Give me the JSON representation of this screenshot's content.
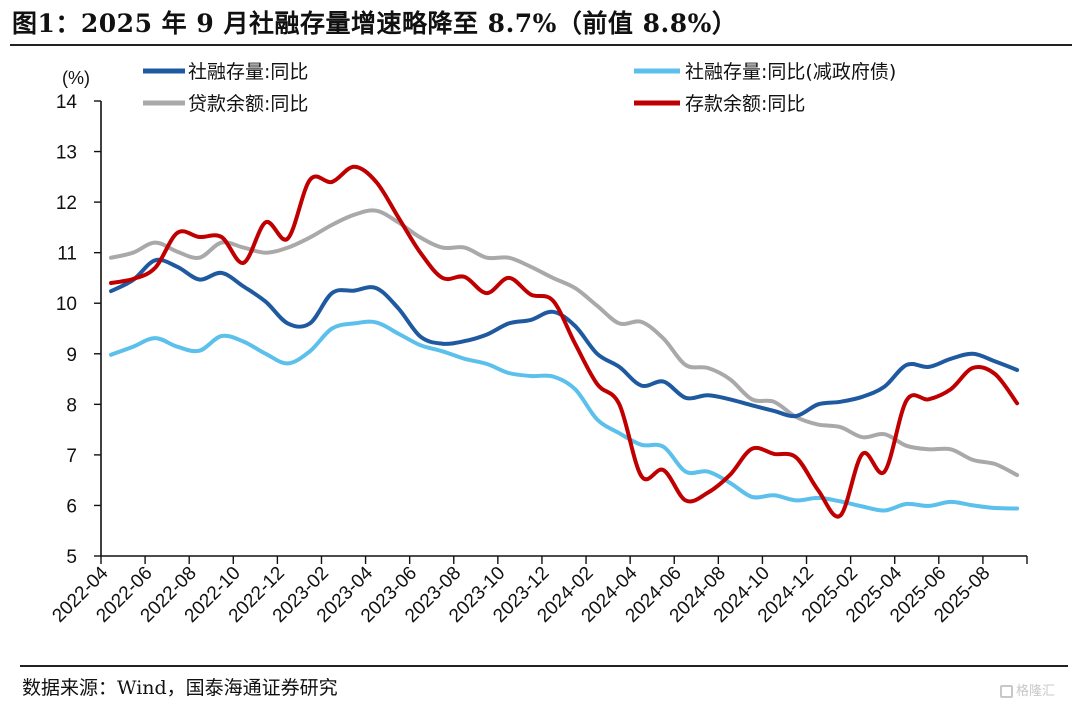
{
  "title": "图1：2025 年 9 月社融存量增速略降至 8.7%（前值 8.8%）",
  "source": "数据来源：Wind，国泰海通证券研究",
  "watermark": "格隆汇",
  "chart_data": {
    "type": "line",
    "title": "图1：2025 年 9 月社融存量增速略降至 8.7%（前值 8.8%）",
    "xlabel": "",
    "ylabel": "(%)",
    "ylim": [
      5,
      14
    ],
    "yticks": [
      "5",
      "6",
      "7",
      "8",
      "9",
      "10",
      "11",
      "12",
      "13",
      "14"
    ],
    "grid": false,
    "legend_position": "top",
    "x": [
      "2022-04",
      "2022-05",
      "2022-06",
      "2022-07",
      "2022-08",
      "2022-09",
      "2022-10",
      "2022-11",
      "2022-12",
      "2023-01",
      "2023-02",
      "2023-03",
      "2023-04",
      "2023-05",
      "2023-06",
      "2023-07",
      "2023-08",
      "2023-09",
      "2023-10",
      "2023-11",
      "2023-12",
      "2024-01",
      "2024-02",
      "2024-03",
      "2024-04",
      "2024-05",
      "2024-06",
      "2024-07",
      "2024-08",
      "2024-09",
      "2024-10",
      "2024-11",
      "2024-12",
      "2025-01",
      "2025-02",
      "2025-03",
      "2025-04",
      "2025-05",
      "2025-06",
      "2025-07",
      "2025-08",
      "2025-09"
    ],
    "xticks": [
      "2022-04",
      "2022-06",
      "2022-08",
      "2022-10",
      "2022-12",
      "2023-02",
      "2023-04",
      "2023-06",
      "2023-08",
      "2023-10",
      "2023-12",
      "2024-02",
      "2024-04",
      "2024-06",
      "2024-08",
      "2024-10",
      "2024-12",
      "2025-02",
      "2025-04",
      "2025-06",
      "2025-08"
    ],
    "series": [
      {
        "name": "社融存量:同比",
        "color": "#1f5aa0",
        "values": [
          10.24,
          10.46,
          10.85,
          10.72,
          10.47,
          10.6,
          10.33,
          10.03,
          9.6,
          9.6,
          10.2,
          10.25,
          10.3,
          9.9,
          9.34,
          9.2,
          9.25,
          9.38,
          9.6,
          9.67,
          9.83,
          9.55,
          9.0,
          8.74,
          8.37,
          8.45,
          8.13,
          8.18,
          8.1,
          7.98,
          7.87,
          7.77,
          8.0,
          8.05,
          8.15,
          8.35,
          8.78,
          8.74,
          8.9,
          9.0,
          8.85,
          8.68
        ]
      },
      {
        "name": "社融存量:同比(减政府债)",
        "color": "#5bc0eb",
        "values": [
          8.98,
          9.14,
          9.31,
          9.14,
          9.06,
          9.35,
          9.24,
          9.0,
          8.81,
          9.05,
          9.5,
          9.6,
          9.62,
          9.4,
          9.17,
          9.05,
          8.9,
          8.8,
          8.62,
          8.56,
          8.55,
          8.3,
          7.7,
          7.43,
          7.2,
          7.16,
          6.67,
          6.67,
          6.45,
          6.17,
          6.2,
          6.1,
          6.15,
          6.08,
          5.98,
          5.9,
          6.03,
          5.99,
          6.07,
          6.0,
          5.95,
          5.94
        ]
      },
      {
        "name": "贷款余额:同比",
        "color": "#a9a9a9",
        "values": [
          10.9,
          11.0,
          11.2,
          11.02,
          10.9,
          11.2,
          11.1,
          11.0,
          11.1,
          11.3,
          11.55,
          11.75,
          11.83,
          11.6,
          11.3,
          11.1,
          11.1,
          10.9,
          10.9,
          10.72,
          10.5,
          10.3,
          9.95,
          9.6,
          9.63,
          9.3,
          8.78,
          8.72,
          8.5,
          8.1,
          8.05,
          7.75,
          7.6,
          7.55,
          7.35,
          7.41,
          7.18,
          7.11,
          7.11,
          6.9,
          6.82,
          6.6
        ]
      },
      {
        "name": "存款余额:同比",
        "color": "#c00000",
        "values": [
          10.4,
          10.48,
          10.7,
          11.39,
          11.31,
          11.31,
          10.8,
          11.6,
          11.28,
          12.44,
          12.4,
          12.7,
          12.4,
          11.7,
          11.0,
          10.5,
          10.52,
          10.2,
          10.5,
          10.17,
          10.05,
          9.2,
          8.4,
          8.0,
          6.58,
          6.7,
          6.1,
          6.25,
          6.6,
          7.12,
          7.02,
          6.95,
          6.3,
          5.8,
          7.02,
          6.67,
          8.08,
          8.1,
          8.3,
          8.72,
          8.6,
          8.02
        ]
      }
    ]
  }
}
